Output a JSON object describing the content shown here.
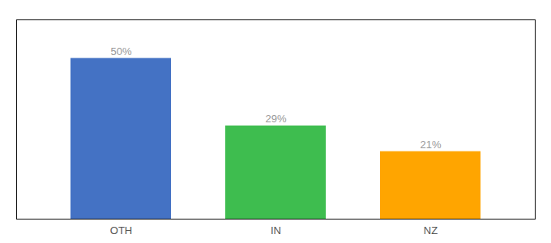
{
  "chart_data": {
    "type": "bar",
    "categories": [
      "OTH",
      "IN",
      "NZ"
    ],
    "values": [
      50,
      29,
      21
    ],
    "value_labels": [
      "50%",
      "29%",
      "21%"
    ],
    "data_labels": true,
    "colors": [
      "#4472C4",
      "#3EBD4F",
      "#FFA500"
    ],
    "ylim": [
      0,
      62
    ],
    "tick_labels": "x"
  }
}
